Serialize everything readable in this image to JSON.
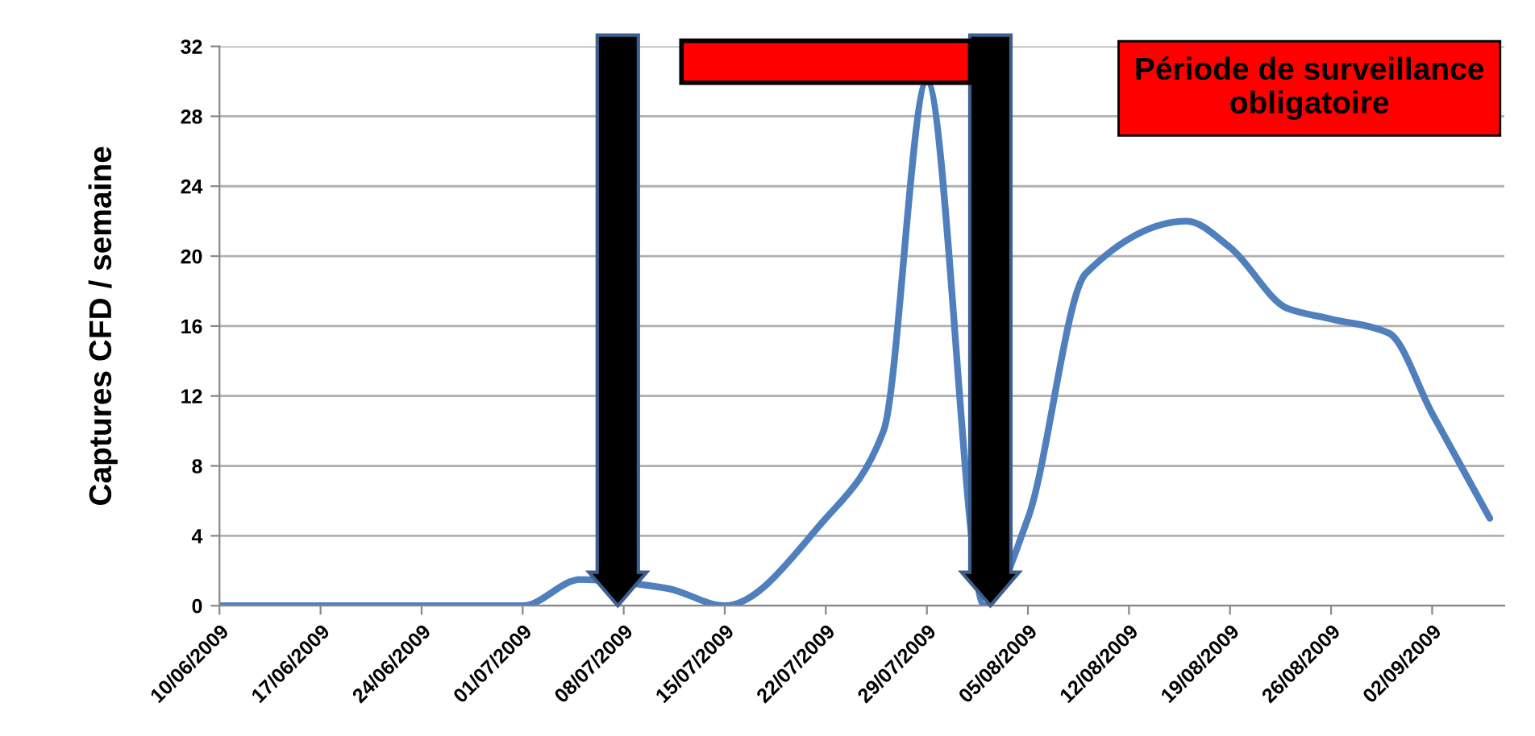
{
  "chart_data": {
    "type": "line",
    "ylabel": "Captures CFD / semaine",
    "x": [
      "2009-06-10",
      "2009-06-17",
      "2009-06-24",
      "2009-07-01",
      "2009-07-05",
      "2009-07-11",
      "2009-07-15",
      "2009-07-22",
      "2009-07-26",
      "2009-07-29",
      "2009-08-02",
      "2009-08-05",
      "2009-08-09",
      "2009-08-16",
      "2009-08-19",
      "2009-08-23",
      "2009-08-26",
      "2009-08-30",
      "2009-09-02",
      "2009-09-06"
    ],
    "series": [
      {
        "color": "#4f7fbc",
        "values": [
          0,
          0,
          0,
          0,
          1.5,
          1,
          0,
          5,
          10,
          30,
          0,
          5,
          19,
          22,
          20.5,
          17,
          16.4,
          15.6,
          11,
          5
        ]
      }
    ],
    "xlim": [
      "2009-06-10",
      "2009-09-07"
    ],
    "xticks": [
      {
        "value": "2009-06-10",
        "label": "10/06/2009"
      },
      {
        "value": "2009-06-17",
        "label": "17/06/2009"
      },
      {
        "value": "2009-06-24",
        "label": "24/06/2009"
      },
      {
        "value": "2009-07-01",
        "label": "01/07/2009"
      },
      {
        "value": "2009-07-08",
        "label": "08/07/2009"
      },
      {
        "value": "2009-07-15",
        "label": "15/07/2009"
      },
      {
        "value": "2009-07-22",
        "label": "22/07/2009"
      },
      {
        "value": "2009-07-29",
        "label": "29/07/2009"
      },
      {
        "value": "2009-08-05",
        "label": "05/08/2009"
      },
      {
        "value": "2009-08-12",
        "label": "12/08/2009"
      },
      {
        "value": "2009-08-19",
        "label": "19/08/2009"
      },
      {
        "value": "2009-08-26",
        "label": "26/08/2009"
      },
      {
        "value": "2009-09-02",
        "label": "02/09/2009"
      }
    ],
    "ylim": [
      0,
      32
    ],
    "yticks": [
      0,
      4,
      8,
      12,
      16,
      20,
      24,
      28,
      32
    ],
    "grid": "y",
    "marker": "none",
    "line_style": "solid",
    "bands": [
      {
        "axis": "x",
        "from": "2009-07-12",
        "to": "2009-08-01",
        "label": "Période de surveillance obligatoire",
        "color": "#ff0000"
      }
    ]
  }
}
